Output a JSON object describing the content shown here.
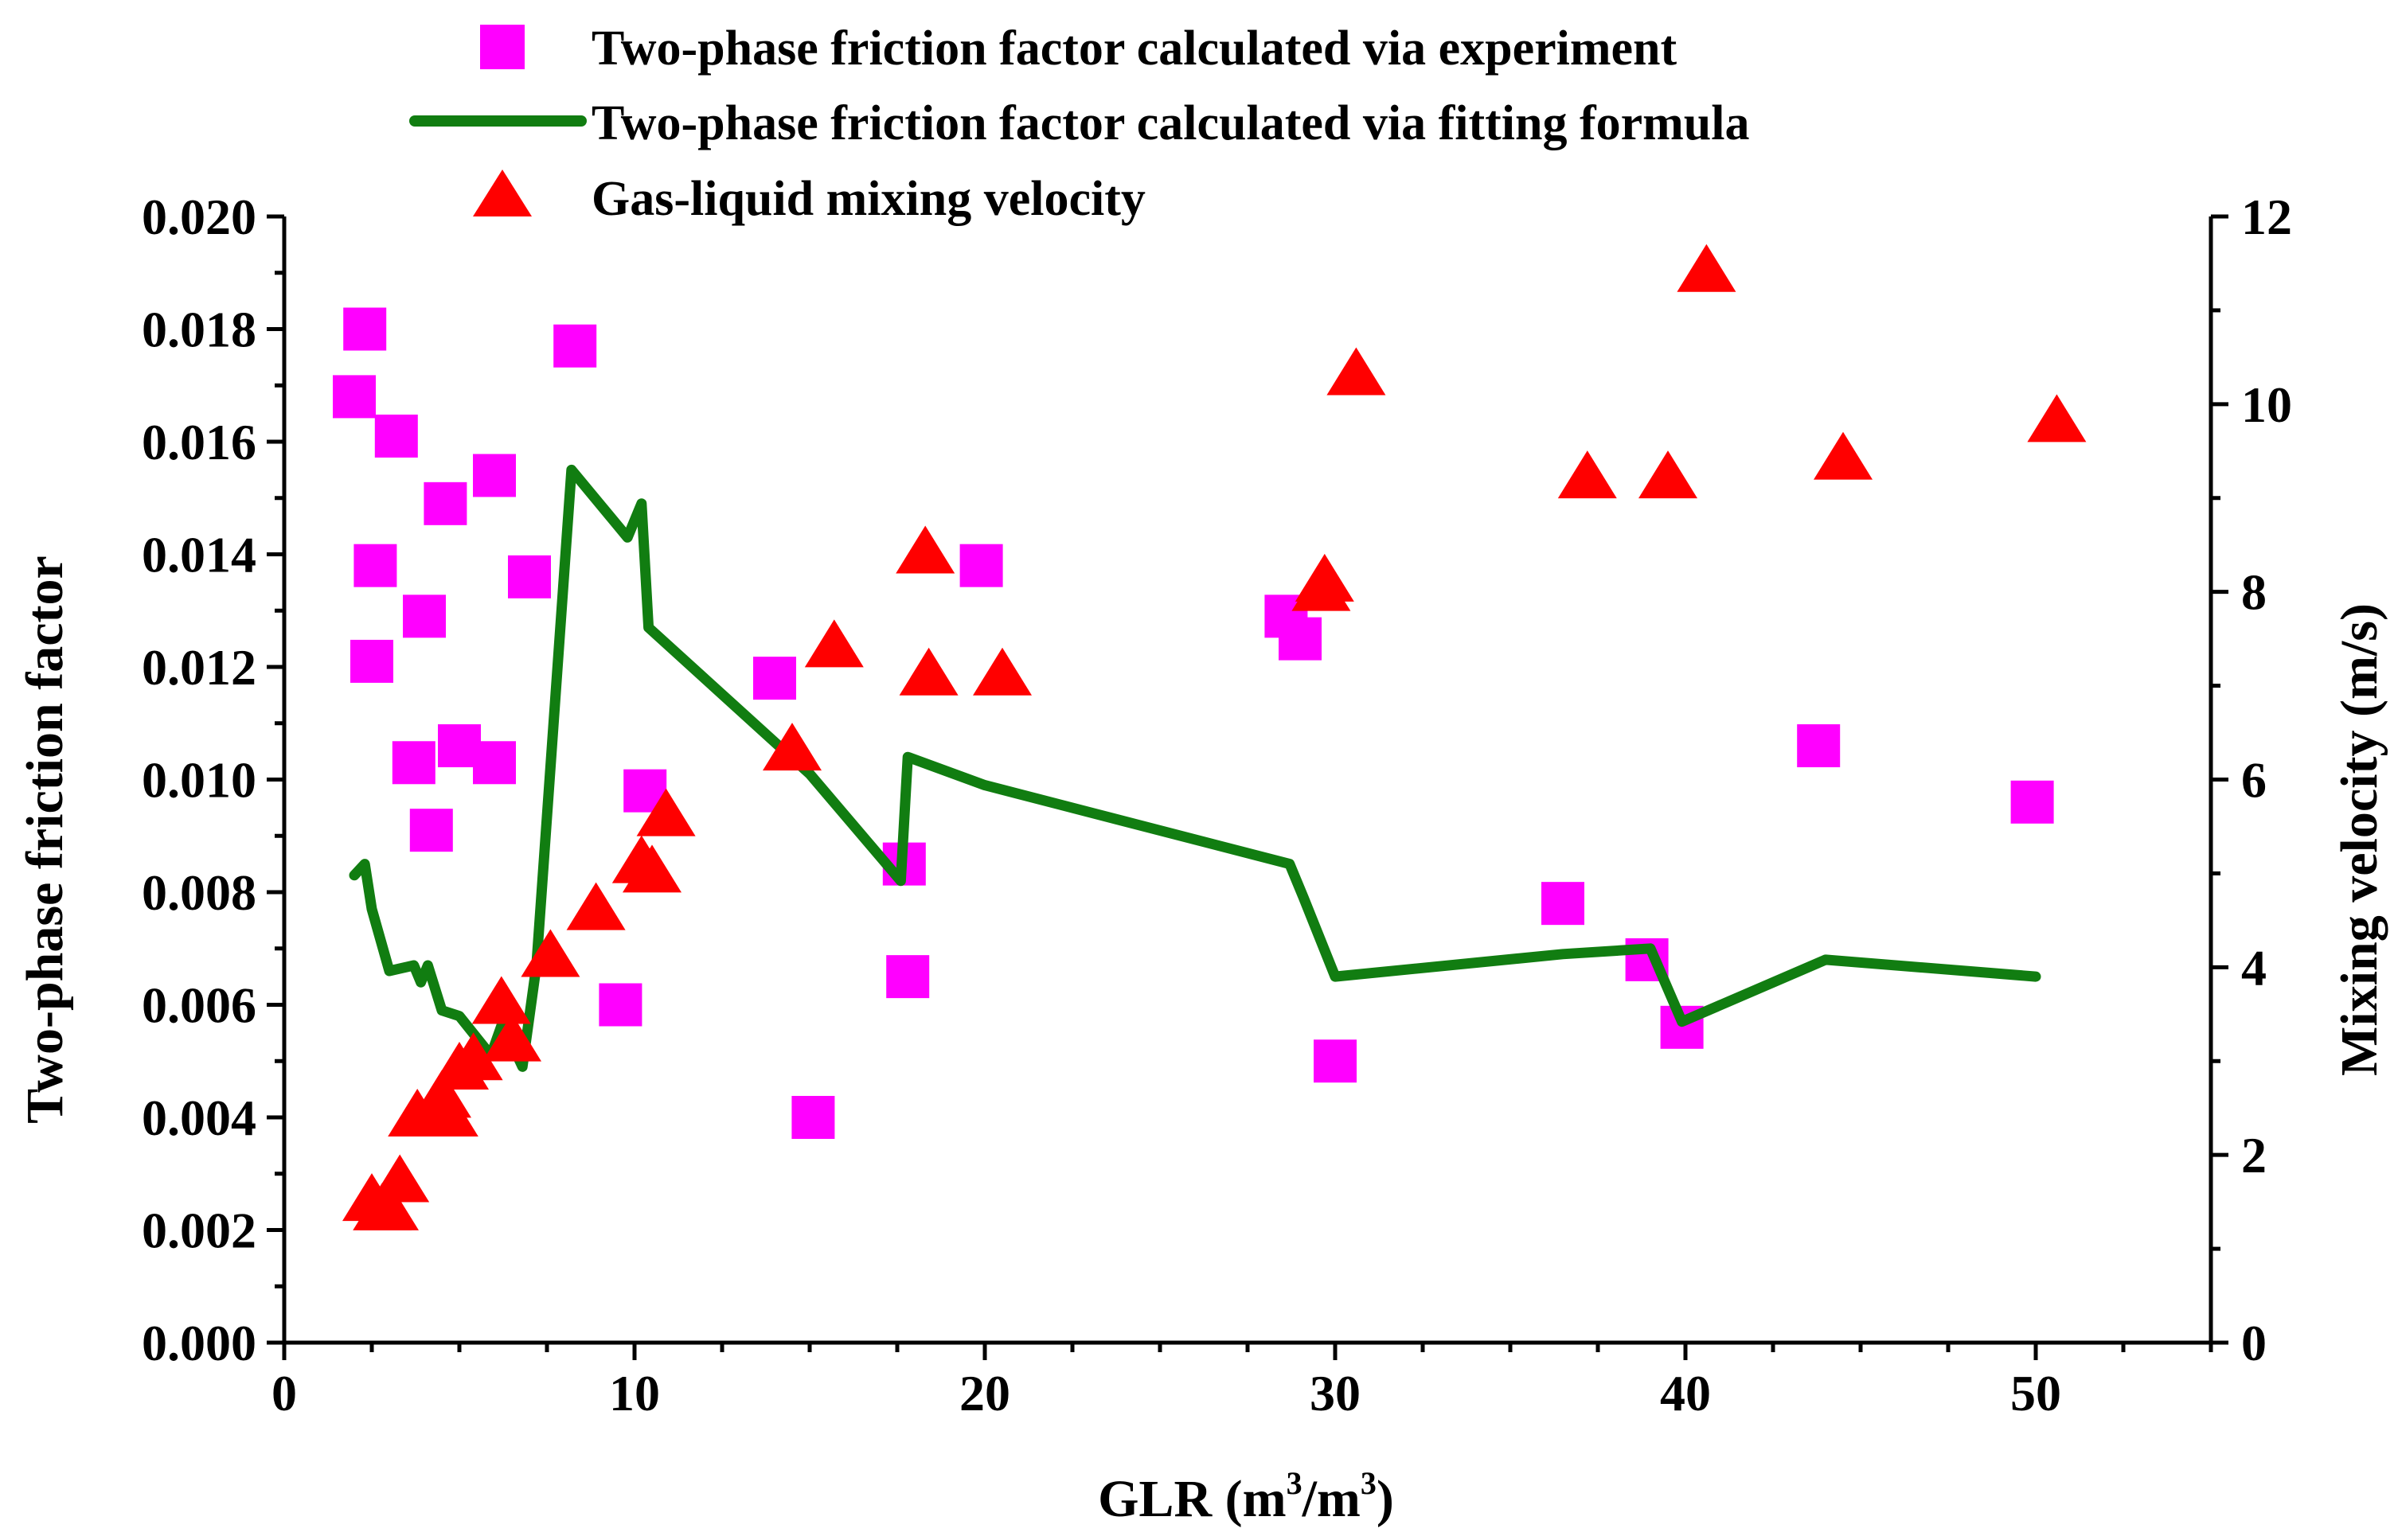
{
  "chart_data": {
    "type": "scatter",
    "xlabel": "GLR (m3/m3)",
    "xlabel_parts": {
      "main": "GLR (m",
      "sup1": "3",
      "mid": "/m",
      "sup2": "3",
      "end": ")"
    },
    "ylabel_left": "Two-phase friction factor",
    "ylabel_right": "Mixing velocity (m/s)",
    "xlim": [
      0,
      55
    ],
    "ylim_left": [
      0,
      0.02
    ],
    "ylim_right": [
      0,
      12
    ],
    "x_ticks": [
      "0",
      "10",
      "20",
      "30",
      "40",
      "50"
    ],
    "y_left_ticks": [
      "0.000",
      "0.002",
      "0.004",
      "0.006",
      "0.008",
      "0.010",
      "0.012",
      "0.014",
      "0.016",
      "0.018",
      "0.020"
    ],
    "y_right_ticks": [
      "0",
      "2",
      "4",
      "6",
      "8",
      "10",
      "12"
    ],
    "legend": [
      "Two-phase friction factor calculated via experiment",
      "Two-phase friction factor calculated via fitting formula",
      "Gas-liquid mixing velocity"
    ],
    "colors": {
      "experiment": "#ff00ff",
      "fitting": "#117d11",
      "velocity": "#ff0000"
    },
    "series": [
      {
        "name": "Two-phase friction factor calculated via experiment",
        "axis": "left",
        "marker": "square",
        "points": [
          [
            2.0,
            0.0168
          ],
          [
            2.3,
            0.018
          ],
          [
            3.2,
            0.0161
          ],
          [
            2.5,
            0.0121
          ],
          [
            2.6,
            0.0138
          ],
          [
            4.0,
            0.0129
          ],
          [
            4.6,
            0.0149
          ],
          [
            6.0,
            0.0154
          ],
          [
            3.7,
            0.0103
          ],
          [
            4.2,
            0.0091
          ],
          [
            5.0,
            0.0106
          ],
          [
            6.0,
            0.0103
          ],
          [
            7.0,
            0.0136
          ],
          [
            8.3,
            0.0177
          ],
          [
            10.3,
            0.0098
          ],
          [
            9.6,
            0.006
          ],
          [
            14.0,
            0.0118
          ],
          [
            15.1,
            0.004
          ],
          [
            17.7,
            0.0085
          ],
          [
            17.8,
            0.0065
          ],
          [
            19.9,
            0.0138
          ],
          [
            28.6,
            0.0129
          ],
          [
            29.0,
            0.0125
          ],
          [
            30.0,
            0.005
          ],
          [
            36.5,
            0.0078
          ],
          [
            38.9,
            0.0068
          ],
          [
            39.9,
            0.0056
          ],
          [
            43.8,
            0.0106
          ],
          [
            49.9,
            0.0096
          ]
        ]
      },
      {
        "name": "Two-phase friction factor calculated via fitting formula",
        "axis": "left",
        "marker": "line",
        "points": [
          [
            2.0,
            0.0083
          ],
          [
            2.3,
            0.0085
          ],
          [
            2.5,
            0.0077
          ],
          [
            3.0,
            0.0066
          ],
          [
            3.7,
            0.0067
          ],
          [
            3.9,
            0.0064
          ],
          [
            4.1,
            0.0067
          ],
          [
            4.5,
            0.0059
          ],
          [
            5.0,
            0.0058
          ],
          [
            5.9,
            0.0051
          ],
          [
            6.3,
            0.0058
          ],
          [
            6.5,
            0.0053
          ],
          [
            6.8,
            0.0049
          ],
          [
            7.2,
            0.0067
          ],
          [
            8.2,
            0.0155
          ],
          [
            9.8,
            0.0143
          ],
          [
            10.2,
            0.0149
          ],
          [
            10.4,
            0.0127
          ],
          [
            15.0,
            0.0101
          ],
          [
            17.6,
            0.0082
          ],
          [
            17.8,
            0.0104
          ],
          [
            20.0,
            0.0099
          ],
          [
            28.7,
            0.0085
          ],
          [
            29.1,
            0.0079
          ],
          [
            30.0,
            0.0065
          ],
          [
            36.5,
            0.0069
          ],
          [
            39.0,
            0.007
          ],
          [
            39.9,
            0.0057
          ],
          [
            44.0,
            0.0068
          ],
          [
            50.0,
            0.0065
          ]
        ]
      },
      {
        "name": "Gas-liquid mixing velocity",
        "axis": "right",
        "marker": "triangle",
        "points": [
          [
            2.5,
            1.5
          ],
          [
            2.8,
            1.4
          ],
          [
            3.0,
            1.4
          ],
          [
            3.3,
            1.7
          ],
          [
            3.8,
            2.4
          ],
          [
            4.2,
            2.4
          ],
          [
            4.5,
            2.6
          ],
          [
            4.7,
            2.4
          ],
          [
            5.0,
            2.9
          ],
          [
            5.4,
            3.0
          ],
          [
            6.2,
            3.6
          ],
          [
            6.5,
            3.2
          ],
          [
            7.6,
            4.1
          ],
          [
            8.9,
            4.6
          ],
          [
            10.2,
            5.1
          ],
          [
            10.5,
            5.0
          ],
          [
            10.9,
            5.6
          ],
          [
            14.5,
            6.3
          ],
          [
            15.7,
            7.4
          ],
          [
            18.3,
            8.4
          ],
          [
            18.4,
            7.1
          ],
          [
            20.5,
            7.1
          ],
          [
            29.6,
            8.0
          ],
          [
            29.7,
            8.1
          ],
          [
            30.6,
            10.3
          ],
          [
            37.2,
            9.2
          ],
          [
            39.5,
            9.2
          ],
          [
            40.6,
            11.4
          ],
          [
            44.5,
            9.4
          ],
          [
            50.6,
            9.8
          ]
        ]
      }
    ]
  }
}
